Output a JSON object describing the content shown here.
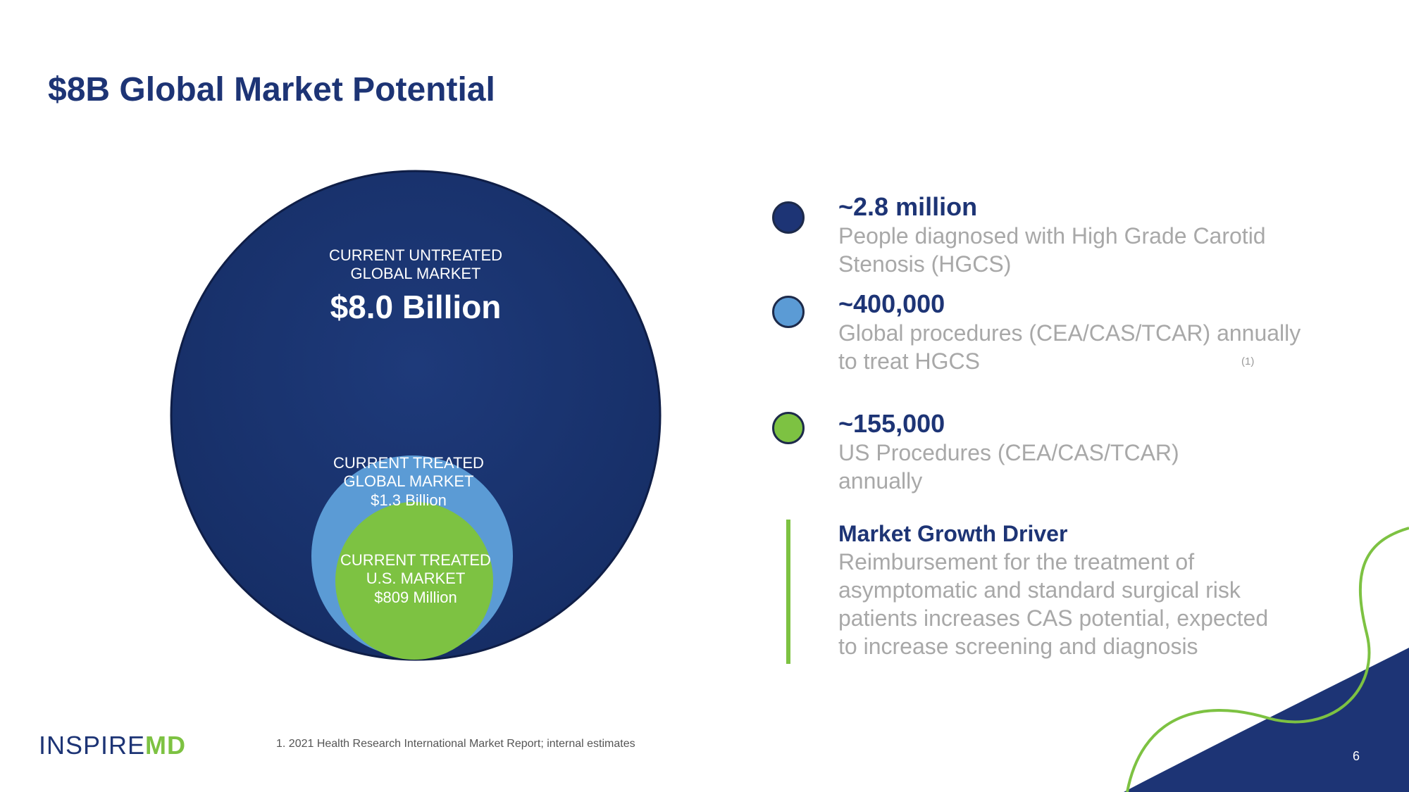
{
  "title": "$8B Global Market Potential",
  "colors": {
    "navy": "#1d3475",
    "light_blue": "#5b9bd5",
    "green": "#7dc242",
    "gray_text": "#a8a8a8"
  },
  "circles": {
    "untreated": {
      "label_line1": "CURRENT UNTREATED",
      "label_line2": "GLOBAL MARKET",
      "value": "$8.0 Billion"
    },
    "treated_global": {
      "label_line1": "CURRENT TREATED",
      "label_line2": "GLOBAL MARKET",
      "value": "$1.3 Billion"
    },
    "treated_us": {
      "label_line1": "CURRENT TREATED",
      "label_line2": "U.S. MARKET",
      "value": "$809 Million"
    }
  },
  "stats": [
    {
      "number": "~2.8 million",
      "desc_line1": "People diagnosed with High Grade Carotid",
      "desc_line2": "Stenosis (HGCS)",
      "dot_color": "#1d3475"
    },
    {
      "number": "~400,000",
      "desc_line1": "Global procedures (CEA/CAS/TCAR) annually",
      "desc_line2": "to treat HGCS",
      "dot_color": "#5b9bd5",
      "ref": "(1)"
    },
    {
      "number": "~155,000",
      "desc_line1": "US Procedures (CEA/CAS/TCAR)",
      "desc_line2": "annually",
      "dot_color": "#7dc242"
    }
  ],
  "driver": {
    "heading": "Market Growth Driver",
    "line1": "Reimbursement for the treatment of",
    "line2": "asymptomatic and standard surgical risk",
    "line3": "patients increases CAS potential, expected",
    "line4": "to increase screening and diagnosis"
  },
  "footer": {
    "logo_main": "INSPIRE",
    "logo_md": "MD",
    "footnote": "1. 2021 Health Research International Market Report; internal estimates",
    "page_number": "6"
  }
}
